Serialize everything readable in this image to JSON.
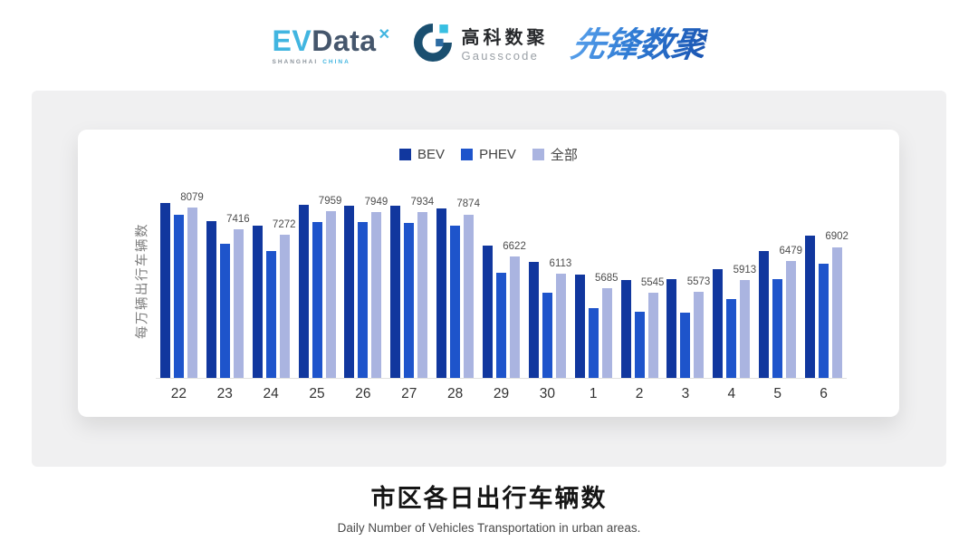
{
  "header": {
    "evdata": {
      "ev": "EV",
      "data": "Data",
      "star_icon": "x-spark-icon",
      "sub_left": "SHANGHAI",
      "sub_right": "CHINA"
    },
    "gausscode": {
      "cn": "高科数聚",
      "en": "Gausscode",
      "icon": "g-ring-icon"
    },
    "xianfeng": {
      "text": "先锋数聚"
    }
  },
  "chart_data": {
    "type": "bar",
    "title": "市区各日出行车辆数",
    "subtitle": "Daily Number of Vehicles Transportation in urban areas.",
    "ylabel": "每万辆出行车辆数",
    "xlabel": "",
    "categories": [
      "22",
      "23",
      "24",
      "25",
      "26",
      "27",
      "28",
      "29",
      "30",
      "1",
      "2",
      "3",
      "4",
      "5",
      "6"
    ],
    "series": [
      {
        "name": "BEV",
        "color": "#11379E",
        "values": [
          8210,
          7660,
          7540,
          8160,
          8130,
          8120,
          8040,
          6940,
          6470,
          6090,
          5920,
          5950,
          6250,
          6790,
          7230
        ]
      },
      {
        "name": "PHEV",
        "color": "#1E54CB",
        "values": [
          7860,
          6990,
          6780,
          7640,
          7650,
          7620,
          7550,
          6120,
          5540,
          5080,
          4960,
          4950,
          5360,
          5940,
          6390
        ]
      },
      {
        "name": "全部",
        "color": "#AAB4E0",
        "values": [
          8079,
          7416,
          7272,
          7959,
          7949,
          7934,
          7874,
          6622,
          6113,
          5685,
          5545,
          5573,
          5913,
          6479,
          6902
        ]
      }
    ],
    "value_labels": [
      "8079",
      "7416",
      "7272",
      "7959",
      "7949",
      "7934",
      "7874",
      "6622",
      "6113",
      "5685",
      "5545",
      "5573",
      "5913",
      "6479",
      "6902"
    ],
    "labeled_series": "全部",
    "ylim": [
      3000,
      8400
    ],
    "yticks_visible": false,
    "grid": false,
    "legend_position": "top-center",
    "axis_line_color": "#E2E2E2"
  },
  "colors": {
    "panel_bg": "#F0F0F1",
    "card_bg": "#FFFFFF",
    "evdata_cyan": "#41B5E0",
    "evdata_dark": "#45566C",
    "gauss_dark": "#1A4F70",
    "gauss_cyan": "#38BFE2",
    "gauss_blue": "#2D6CA3",
    "xianfeng_blue": "#2F7BD4"
  }
}
